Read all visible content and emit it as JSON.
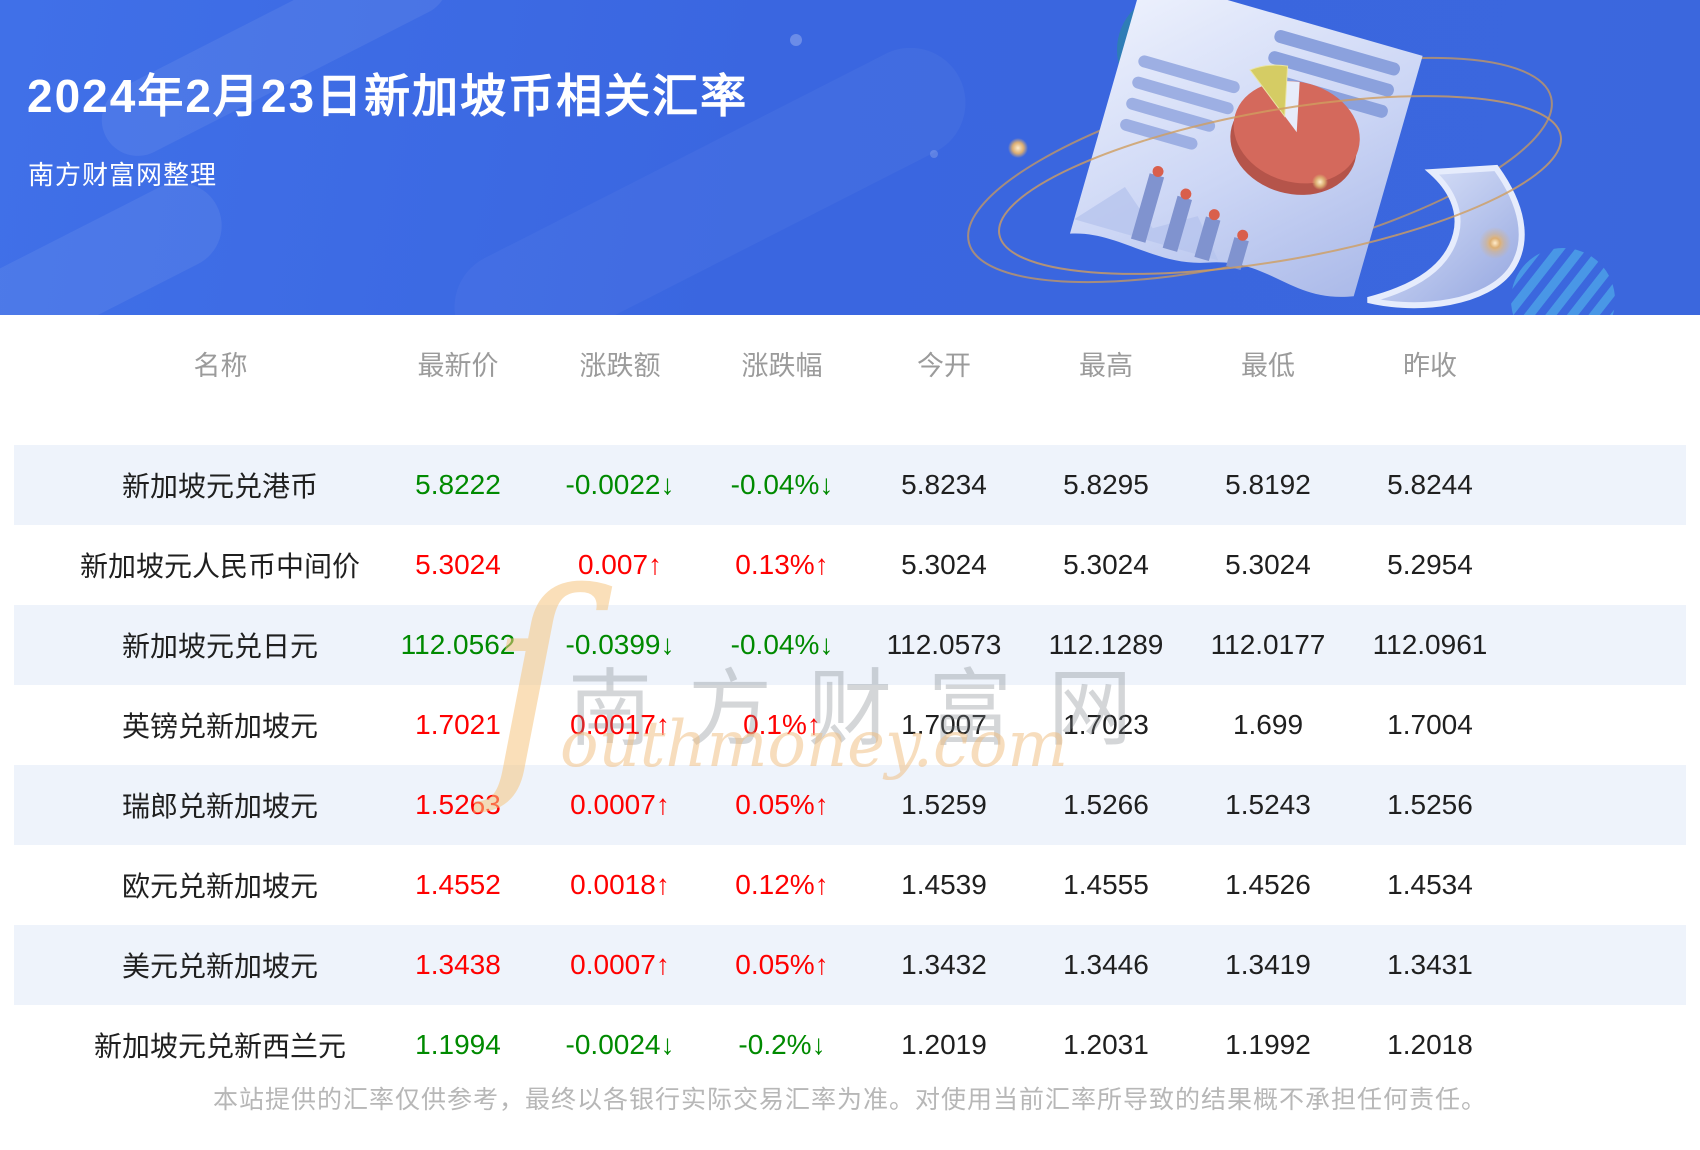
{
  "page": {
    "title": "2024年2月23日新加坡币相关汇率",
    "subtitle": "南方财富网整理",
    "disclaimer": "本站提供的汇率仅供参考，最终以各银行实际交易汇率为准。对使用当前汇率所导致的结果概不承担任何责任。"
  },
  "colors": {
    "banner_blue": "#3b67dd",
    "up_red": "#ff0000",
    "down_green": "#008a00",
    "row_stripe": "#eef3fb",
    "header_gray": "#9b9b9b"
  },
  "watermark": {
    "swoosh_glyph": "ſ",
    "cn": "南方财富网",
    "en": "outhmoney.com"
  },
  "illustration": {
    "name": "finance-report-illustration",
    "elements": [
      "curled-paper",
      "pie-chart",
      "text-lines",
      "bar-chart-with-dots",
      "orbit-rings",
      "glow-spheres",
      "striped-circle",
      "teal-blob"
    ]
  },
  "table": {
    "headers": [
      "名称",
      "最新价",
      "涨跌额",
      "涨跌幅",
      "今开",
      "最高",
      "最低",
      "昨收"
    ],
    "rows": [
      {
        "name": "新加坡元兑港币",
        "last": "5.8222",
        "change": "-0.0022↓",
        "change_pct": "-0.04%↓",
        "open": "5.8234",
        "high": "5.8295",
        "low": "5.8192",
        "prev_close": "5.8244",
        "trend": "down"
      },
      {
        "name": "新加坡元人民币中间价",
        "last": "5.3024",
        "change": "0.007↑",
        "change_pct": "0.13%↑",
        "open": "5.3024",
        "high": "5.3024",
        "low": "5.3024",
        "prev_close": "5.2954",
        "trend": "up"
      },
      {
        "name": "新加坡元兑日元",
        "last": "112.0562",
        "change": "-0.0399↓",
        "change_pct": "-0.04%↓",
        "open": "112.0573",
        "high": "112.1289",
        "low": "112.0177",
        "prev_close": "112.0961",
        "trend": "down"
      },
      {
        "name": "英镑兑新加坡元",
        "last": "1.7021",
        "change": "0.0017↑",
        "change_pct": "0.1%↑",
        "open": "1.7007",
        "high": "1.7023",
        "low": "1.699",
        "prev_close": "1.7004",
        "trend": "up"
      },
      {
        "name": "瑞郎兑新加坡元",
        "last": "1.5263",
        "change": "0.0007↑",
        "change_pct": "0.05%↑",
        "open": "1.5259",
        "high": "1.5266",
        "low": "1.5243",
        "prev_close": "1.5256",
        "trend": "up"
      },
      {
        "name": "欧元兑新加坡元",
        "last": "1.4552",
        "change": "0.0018↑",
        "change_pct": "0.12%↑",
        "open": "1.4539",
        "high": "1.4555",
        "low": "1.4526",
        "prev_close": "1.4534",
        "trend": "up"
      },
      {
        "name": "美元兑新加坡元",
        "last": "1.3438",
        "change": "0.0007↑",
        "change_pct": "0.05%↑",
        "open": "1.3432",
        "high": "1.3446",
        "low": "1.3419",
        "prev_close": "1.3431",
        "trend": "up"
      },
      {
        "name": "新加坡元兑新西兰元",
        "last": "1.1994",
        "change": "-0.0024↓",
        "change_pct": "-0.2%↓",
        "open": "1.2019",
        "high": "1.2031",
        "low": "1.1992",
        "prev_close": "1.2018",
        "trend": "down"
      }
    ]
  }
}
